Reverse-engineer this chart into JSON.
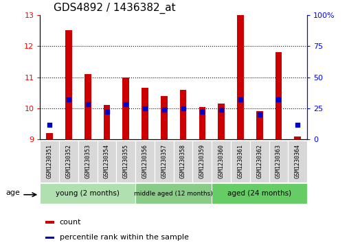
{
  "title": "GDS4892 / 1436382_at",
  "samples": [
    "GSM1230351",
    "GSM1230352",
    "GSM1230353",
    "GSM1230354",
    "GSM1230355",
    "GSM1230356",
    "GSM1230357",
    "GSM1230358",
    "GSM1230359",
    "GSM1230360",
    "GSM1230361",
    "GSM1230362",
    "GSM1230363",
    "GSM1230364"
  ],
  "counts": [
    9.2,
    12.5,
    11.1,
    10.1,
    11.0,
    10.65,
    10.4,
    10.6,
    10.05,
    10.15,
    13.0,
    9.9,
    11.8,
    9.1
  ],
  "percentiles": [
    12,
    32,
    28,
    22,
    28,
    25,
    24,
    25,
    22,
    24,
    32,
    20,
    32,
    12
  ],
  "ylim_left": [
    9,
    13
  ],
  "ylim_right": [
    0,
    100
  ],
  "yticks_left": [
    9,
    10,
    11,
    12,
    13
  ],
  "yticks_right": [
    0,
    25,
    50,
    75,
    100
  ],
  "ytick_labels_right": [
    "0",
    "25",
    "50",
    "75",
    "100%"
  ],
  "bar_color": "#cc0000",
  "dot_color": "#0000cc",
  "bar_bottom": 9.0,
  "groups": [
    {
      "label": "young (2 months)",
      "start": 0,
      "end": 5
    },
    {
      "label": "middle aged (12 months)",
      "start": 5,
      "end": 9
    },
    {
      "label": "aged (24 months)",
      "start": 9,
      "end": 14
    }
  ],
  "group_colors": [
    "#b0e0b0",
    "#88cc88",
    "#66cc66"
  ],
  "age_label": "age",
  "legend_count_label": "count",
  "legend_percentile_label": "percentile rank within the sample",
  "background_color": "#ffffff",
  "title_fontsize": 11,
  "tick_fontsize": 8,
  "bar_width": 0.35
}
